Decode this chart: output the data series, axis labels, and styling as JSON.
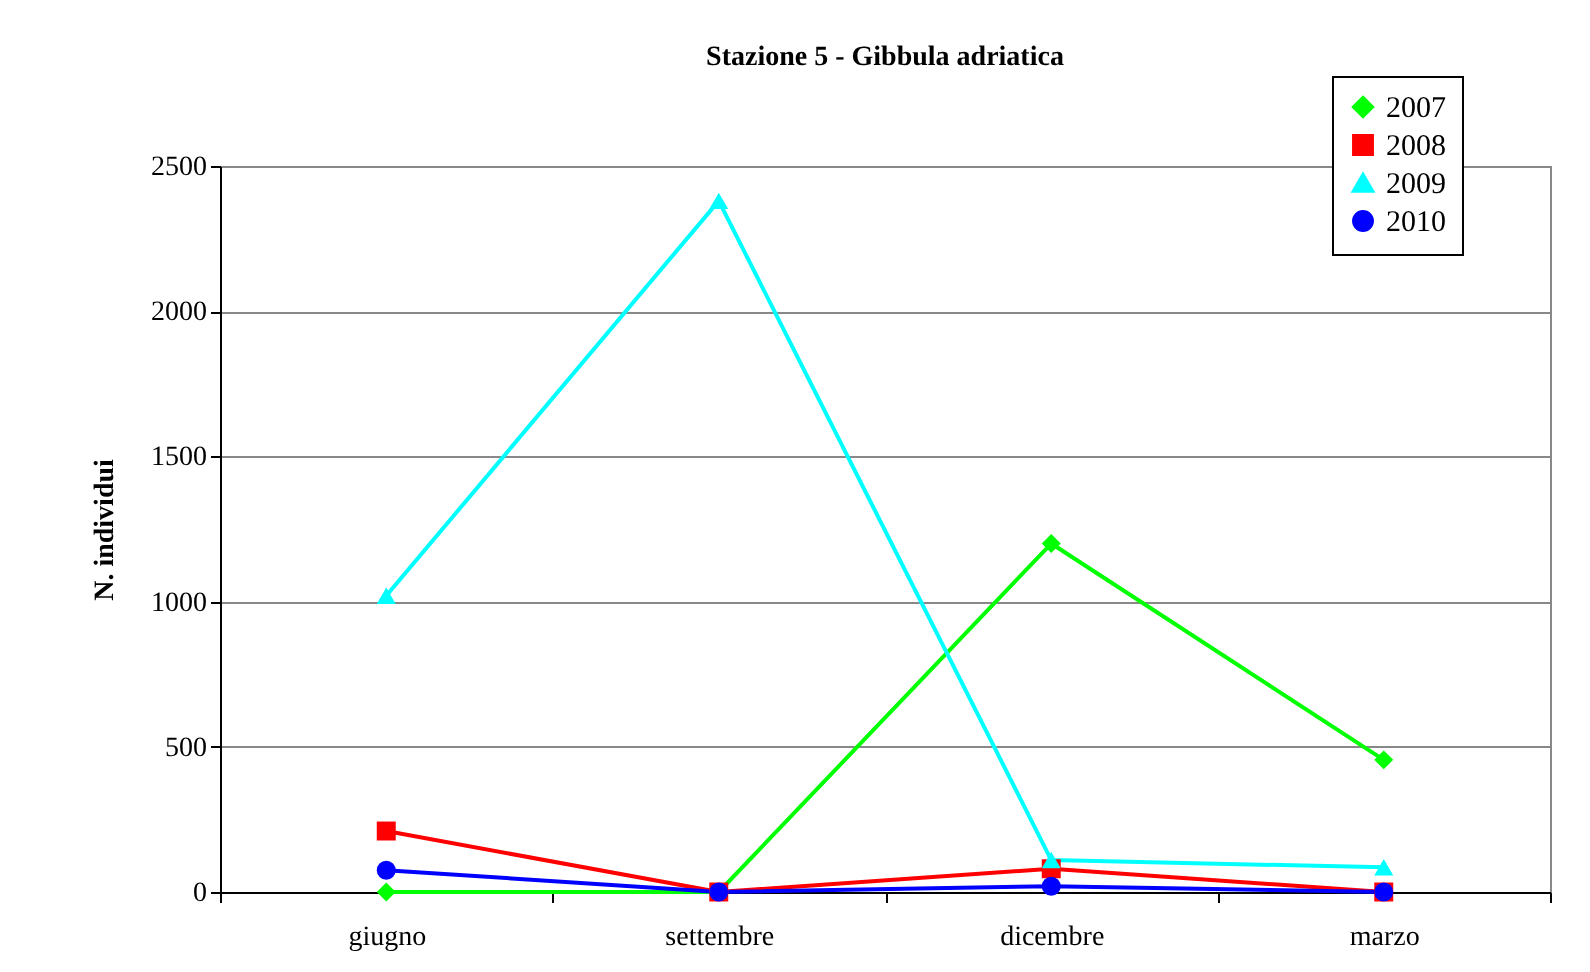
{
  "chart_data": {
    "type": "line",
    "title": "Stazione 5 - Gibbula adriatica",
    "ylabel": "N. individui",
    "categories": [
      "giugno",
      "settembre",
      "dicembre",
      "marzo"
    ],
    "series": [
      {
        "name": "2007",
        "color": "#00ff00",
        "marker": "diamond",
        "values": [
          0,
          0,
          1200,
          455
        ]
      },
      {
        "name": "2008",
        "color": "#ff0000",
        "marker": "square",
        "values": [
          210,
          0,
          80,
          0
        ]
      },
      {
        "name": "2009",
        "color": "#00ffff",
        "marker": "triangle",
        "values": [
          1020,
          2380,
          110,
          85
        ]
      },
      {
        "name": "2010",
        "color": "#0000ff",
        "marker": "circle",
        "values": [
          75,
          0,
          20,
          0
        ]
      }
    ],
    "ylim": [
      0,
      2500
    ],
    "yticks": [
      0,
      500,
      1000,
      1500,
      2000,
      2500
    ],
    "grid": "y",
    "legend": "top right"
  }
}
